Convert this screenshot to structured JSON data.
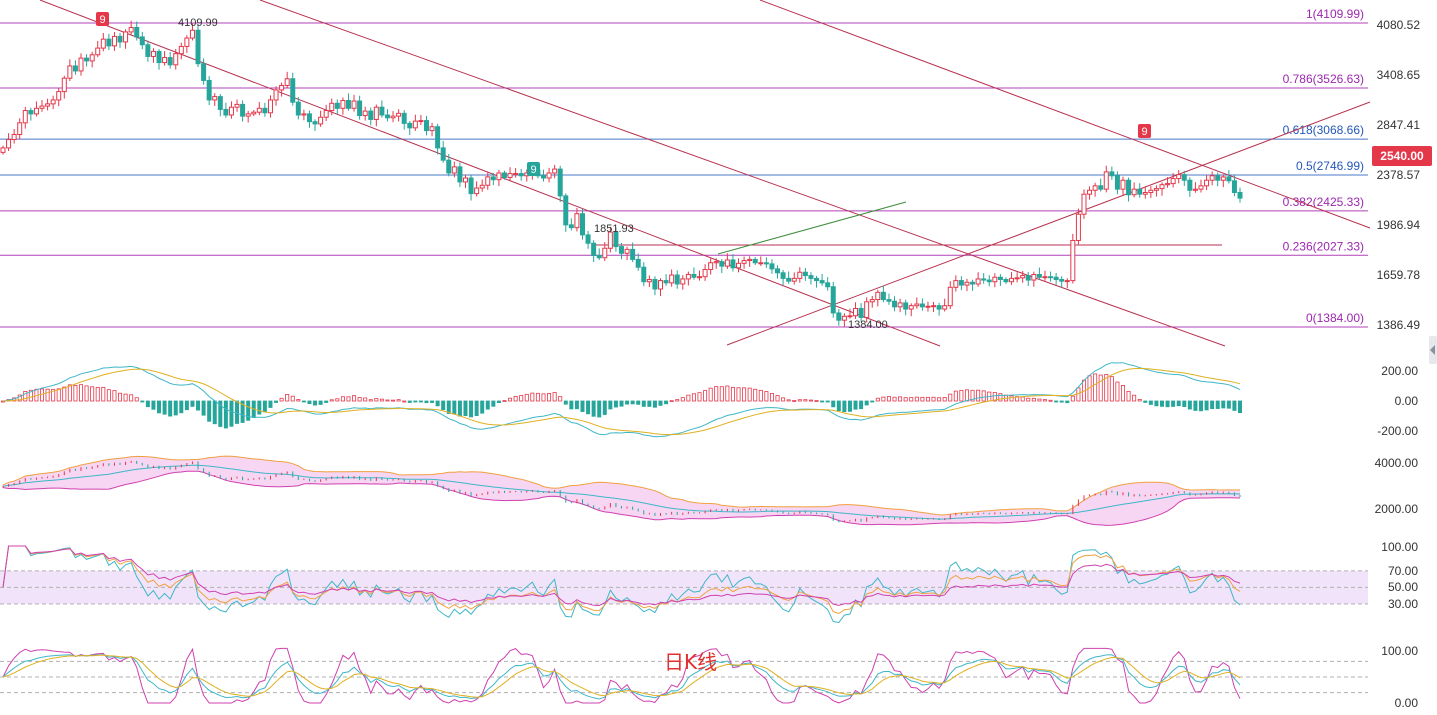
{
  "chart_data": {
    "type": "candlestick",
    "timeframe_label": "日K线",
    "price_axis_ticks": [
      "4080.52",
      "3408.65",
      "2847.41",
      "2378.57",
      "1986.94",
      "1659.78",
      "1386.49"
    ],
    "current_price": "2540.00",
    "fib_levels": [
      {
        "label": "1(4109.99)",
        "value": 4109.99
      },
      {
        "label": "0.786(3526.63)",
        "value": 3526.63
      },
      {
        "label": "0.618(3068.66)",
        "value": 3068.66
      },
      {
        "label": "0.5(2746.99)",
        "value": 2746.99
      },
      {
        "label": "0.382(2425.33)",
        "value": 2425.33
      },
      {
        "label": "0.236(2027.33)",
        "value": 2027.33
      },
      {
        "label": "0(1384.00)",
        "value": 1384.0
      }
    ],
    "annotations": {
      "high": "4109.99",
      "low": "1384.00",
      "support": "1851.93",
      "td_top_1": "9",
      "td_bottom": "9",
      "td_top_2": "9"
    },
    "closes": [
      2990,
      3065,
      3110,
      3215,
      3325,
      3295,
      3345,
      3365,
      3385,
      3420,
      3495,
      3615,
      3725,
      3680,
      3795,
      3770,
      3825,
      3885,
      3965,
      3905,
      3990,
      3940,
      4030,
      4070,
      3985,
      3915,
      3810,
      3855,
      3755,
      3800,
      3735,
      3835,
      3900,
      3975,
      4045,
      3745,
      3595,
      3420,
      3450,
      3335,
      3285,
      3355,
      3380,
      3275,
      3295,
      3310,
      3345,
      3305,
      3420,
      3510,
      3550,
      3610,
      3400,
      3285,
      3295,
      3225,
      3205,
      3265,
      3325,
      3390,
      3345,
      3415,
      3345,
      3410,
      3280,
      3320,
      3245,
      3355,
      3285,
      3260,
      3275,
      3300,
      3210,
      3170,
      3230,
      3235,
      3145,
      3180,
      2990,
      2880,
      2765,
      2820,
      2685,
      2720,
      2580,
      2630,
      2655,
      2730,
      2705,
      2765,
      2725,
      2760,
      2760,
      2740,
      2765,
      2790,
      2740,
      2720,
      2765,
      2800,
      2560,
      2300,
      2275,
      2400,
      2210,
      2135,
      2025,
      2005,
      2090,
      2235,
      2105,
      2045,
      2080,
      1990,
      1920,
      1790,
      1810,
      1725,
      1800,
      1780,
      1850,
      1770,
      1815,
      1855,
      1830,
      1835,
      1900,
      1960,
      1970,
      1930,
      1985,
      1915,
      1955,
      1980,
      1990,
      1960,
      1960,
      1950,
      1905,
      1870,
      1820,
      1795,
      1820,
      1875,
      1845,
      1820,
      1800,
      1780,
      1745,
      1510,
      1445,
      1480,
      1485,
      1550,
      1470,
      1610,
      1630,
      1695,
      1630,
      1615,
      1565,
      1600,
      1545,
      1575,
      1590,
      1565,
      1570,
      1575,
      1545,
      1575,
      1740,
      1800,
      1760,
      1785,
      1770,
      1815,
      1805,
      1790,
      1830,
      1810,
      1790,
      1820,
      1825,
      1845,
      1805,
      1855,
      1830,
      1835,
      1830,
      1810,
      1795,
      1800,
      2160,
      2395,
      2575,
      2610,
      2650,
      2620,
      2775,
      2740,
      2620,
      2700,
      2570,
      2620,
      2575,
      2590,
      2610,
      2625,
      2660,
      2670,
      2715,
      2750,
      2700,
      2610,
      2620,
      2650,
      2700,
      2740,
      2700,
      2730,
      2695,
      2590,
      2540
    ],
    "macd": {
      "ylim": [
        -260,
        260
      ],
      "ticks": [
        "200.00",
        "0.00",
        "-200.00"
      ]
    },
    "bollinger": {
      "ticks": [
        "4000.00",
        "2000.00"
      ]
    },
    "rsi": {
      "ticks": [
        "100.00",
        "70.00",
        "50.00",
        "30.00"
      ]
    },
    "kdj": {
      "ticks": [
        "100.00",
        "0.00"
      ]
    }
  }
}
